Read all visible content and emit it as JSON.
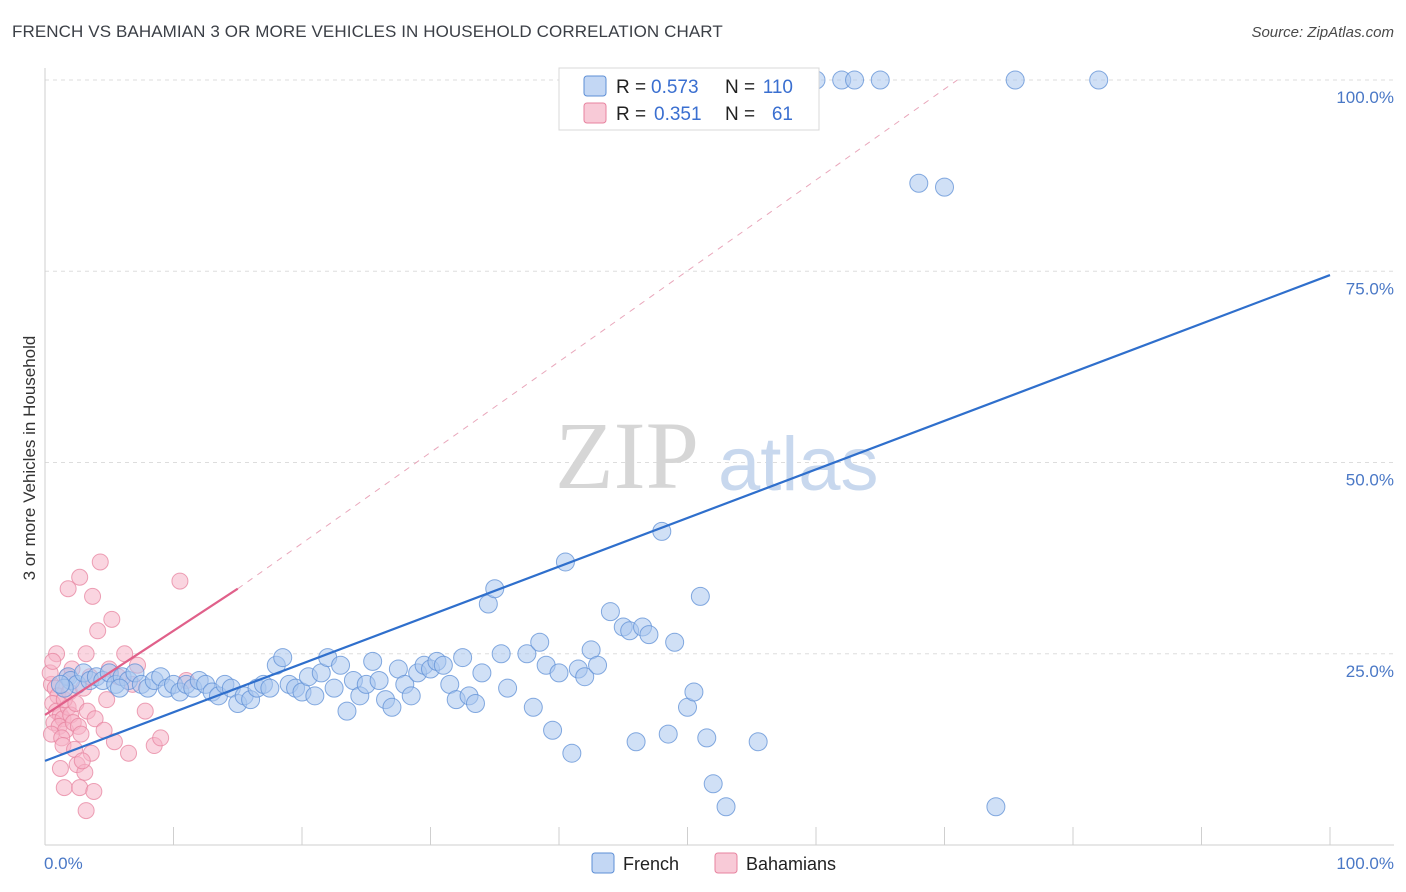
{
  "title": "FRENCH VS BAHAMIAN 3 OR MORE VEHICLES IN HOUSEHOLD CORRELATION CHART",
  "source": "Source: ZipAtlas.com",
  "watermark": {
    "zip": "ZIP",
    "atlas": "atlas"
  },
  "colors": {
    "french": "#a9c6ef",
    "french_edge": "#5e8fd6",
    "french_line": "#2f6fcc",
    "bahamians": "#f5b3c6",
    "bahamians_edge": "#e7839f",
    "bahamians_line": "#e0608a"
  },
  "legend": {
    "rows": [
      {
        "r_label": "R =",
        "r_value": "0.573",
        "n_label": "N =",
        "n_value": "110"
      },
      {
        "r_label": "R =",
        "r_value": "0.351",
        "n_label": "N =",
        "n_value": "61"
      }
    ],
    "series": [
      "French",
      "Bahamians"
    ]
  },
  "chart_data": {
    "type": "scatter",
    "title": "FRENCH VS BAHAMIAN 3 OR MORE VEHICLES IN HOUSEHOLD CORRELATION CHART",
    "xlabel": "",
    "ylabel": "3 or more Vehicles in Household",
    "xlim": [
      0,
      100
    ],
    "ylim": [
      0,
      100
    ],
    "x_tick_labels": [
      "0.0%",
      "100.0%"
    ],
    "y_tick_labels": [
      "25.0%",
      "50.0%",
      "75.0%",
      "100.0%"
    ],
    "y_ticks": [
      25,
      50,
      75,
      100
    ],
    "grid": true,
    "legend_position": "top-center",
    "series": [
      {
        "name": "French",
        "R": 0.573,
        "N": 110,
        "trend": {
          "x": [
            0,
            100
          ],
          "y": [
            11.0,
            74.5
          ]
        },
        "points": [
          [
            1.8,
            22.0
          ],
          [
            2.0,
            21.5
          ],
          [
            2.5,
            21.0
          ],
          [
            1.5,
            20.5
          ],
          [
            1.2,
            21.0
          ],
          [
            3.0,
            22.5
          ],
          [
            3.5,
            21.5
          ],
          [
            4.0,
            22.0
          ],
          [
            4.5,
            21.5
          ],
          [
            5.0,
            22.5
          ],
          [
            5.5,
            21.0
          ],
          [
            6.0,
            22.0
          ],
          [
            6.5,
            21.5
          ],
          [
            7.0,
            22.5
          ],
          [
            5.8,
            20.5
          ],
          [
            7.5,
            21.0
          ],
          [
            8.0,
            20.5
          ],
          [
            8.5,
            21.5
          ],
          [
            9.0,
            22.0
          ],
          [
            9.5,
            20.5
          ],
          [
            10.0,
            21.0
          ],
          [
            10.5,
            20.0
          ],
          [
            11.0,
            21.0
          ],
          [
            11.5,
            20.5
          ],
          [
            12.0,
            21.5
          ],
          [
            12.5,
            21.0
          ],
          [
            13.0,
            20.0
          ],
          [
            13.5,
            19.5
          ],
          [
            14.0,
            21.0
          ],
          [
            14.5,
            20.5
          ],
          [
            15.0,
            18.5
          ],
          [
            15.5,
            19.5
          ],
          [
            16.0,
            19.0
          ],
          [
            16.5,
            20.5
          ],
          [
            17.0,
            21.0
          ],
          [
            17.5,
            20.5
          ],
          [
            18.0,
            23.5
          ],
          [
            18.5,
            24.5
          ],
          [
            19.0,
            21.0
          ],
          [
            19.5,
            20.5
          ],
          [
            20.0,
            20.0
          ],
          [
            20.5,
            22.0
          ],
          [
            21.0,
            19.5
          ],
          [
            21.5,
            22.5
          ],
          [
            22.0,
            24.5
          ],
          [
            22.5,
            20.5
          ],
          [
            23.0,
            23.5
          ],
          [
            23.5,
            17.5
          ],
          [
            24.0,
            21.5
          ],
          [
            24.5,
            19.5
          ],
          [
            25.0,
            21.0
          ],
          [
            25.5,
            24.0
          ],
          [
            26.0,
            21.5
          ],
          [
            26.5,
            19.0
          ],
          [
            27.0,
            18.0
          ],
          [
            27.5,
            23.0
          ],
          [
            28.0,
            21.0
          ],
          [
            28.5,
            19.5
          ],
          [
            29.0,
            22.5
          ],
          [
            29.5,
            23.5
          ],
          [
            30.0,
            23.0
          ],
          [
            30.5,
            24.0
          ],
          [
            31.0,
            23.5
          ],
          [
            31.5,
            21.0
          ],
          [
            32.0,
            19.0
          ],
          [
            32.5,
            24.5
          ],
          [
            33.0,
            19.5
          ],
          [
            33.5,
            18.5
          ],
          [
            34.0,
            22.5
          ],
          [
            34.5,
            31.5
          ],
          [
            35.0,
            33.5
          ],
          [
            35.5,
            25.0
          ],
          [
            36.0,
            20.5
          ],
          [
            37.5,
            25.0
          ],
          [
            38.0,
            18.0
          ],
          [
            38.5,
            26.5
          ],
          [
            39.0,
            23.5
          ],
          [
            39.5,
            15.0
          ],
          [
            40.0,
            22.5
          ],
          [
            40.5,
            37.0
          ],
          [
            41.0,
            12.0
          ],
          [
            41.5,
            23.0
          ],
          [
            42.0,
            22.0
          ],
          [
            42.5,
            25.5
          ],
          [
            43.0,
            23.5
          ],
          [
            44.0,
            30.5
          ],
          [
            45.0,
            28.5
          ],
          [
            45.5,
            28.0
          ],
          [
            46.0,
            13.5
          ],
          [
            46.5,
            28.5
          ],
          [
            47.0,
            27.5
          ],
          [
            48.0,
            41.0
          ],
          [
            48.5,
            14.5
          ],
          [
            49.0,
            26.5
          ],
          [
            50.0,
            18.0
          ],
          [
            50.5,
            20.0
          ],
          [
            51.0,
            32.5
          ],
          [
            51.5,
            14.0
          ],
          [
            52.0,
            8.0
          ],
          [
            53.0,
            5.0
          ],
          [
            55.5,
            13.5
          ],
          [
            60.0,
            100.0
          ],
          [
            62.0,
            100.0
          ],
          [
            63.0,
            100.0
          ],
          [
            65.0,
            100.0
          ],
          [
            68.0,
            86.5
          ],
          [
            70.0,
            86.0
          ],
          [
            74.0,
            5.0
          ],
          [
            75.5,
            100.0
          ],
          [
            82.0,
            100.0
          ]
        ]
      },
      {
        "name": "Bahamians",
        "R": 0.351,
        "N": 61,
        "trend": {
          "x": [
            0,
            15
          ],
          "y": [
            17.0,
            33.5
          ]
        },
        "points": [
          [
            0.5,
            21.0
          ],
          [
            0.8,
            20.5
          ],
          [
            1.0,
            19.5
          ],
          [
            0.6,
            18.5
          ],
          [
            0.9,
            17.5
          ],
          [
            1.2,
            17.0
          ],
          [
            0.7,
            16.0
          ],
          [
            1.4,
            16.5
          ],
          [
            1.1,
            15.5
          ],
          [
            1.6,
            15.0
          ],
          [
            0.5,
            14.5
          ],
          [
            1.3,
            14.0
          ],
          [
            1.8,
            18.0
          ],
          [
            2.0,
            17.0
          ],
          [
            2.2,
            16.0
          ],
          [
            1.5,
            19.0
          ],
          [
            1.9,
            20.0
          ],
          [
            2.4,
            18.5
          ],
          [
            2.6,
            15.5
          ],
          [
            2.8,
            14.5
          ],
          [
            3.0,
            20.5
          ],
          [
            1.7,
            22.0
          ],
          [
            2.1,
            23.0
          ],
          [
            0.9,
            25.0
          ],
          [
            3.2,
            25.0
          ],
          [
            3.5,
            22.0
          ],
          [
            1.4,
            13.0
          ],
          [
            2.3,
            12.5
          ],
          [
            3.6,
            12.0
          ],
          [
            1.2,
            10.0
          ],
          [
            2.5,
            10.5
          ],
          [
            3.1,
            9.5
          ],
          [
            1.5,
            7.5
          ],
          [
            2.7,
            7.5
          ],
          [
            3.8,
            7.0
          ],
          [
            3.2,
            4.5
          ],
          [
            1.8,
            33.5
          ],
          [
            2.7,
            35.0
          ],
          [
            4.3,
            37.0
          ],
          [
            3.7,
            32.5
          ],
          [
            4.1,
            28.0
          ],
          [
            5.2,
            29.5
          ],
          [
            6.2,
            25.0
          ],
          [
            5.0,
            23.0
          ],
          [
            5.7,
            22.0
          ],
          [
            6.8,
            21.0
          ],
          [
            7.2,
            23.5
          ],
          [
            7.8,
            17.5
          ],
          [
            8.5,
            13.0
          ],
          [
            9.0,
            14.0
          ],
          [
            10.5,
            34.5
          ],
          [
            11.0,
            21.5
          ],
          [
            4.8,
            19.0
          ],
          [
            3.3,
            17.5
          ],
          [
            3.9,
            16.5
          ],
          [
            4.6,
            15.0
          ],
          [
            5.4,
            13.5
          ],
          [
            6.5,
            12.0
          ],
          [
            2.9,
            11.0
          ],
          [
            0.4,
            22.5
          ],
          [
            0.6,
            24.0
          ]
        ]
      }
    ]
  }
}
